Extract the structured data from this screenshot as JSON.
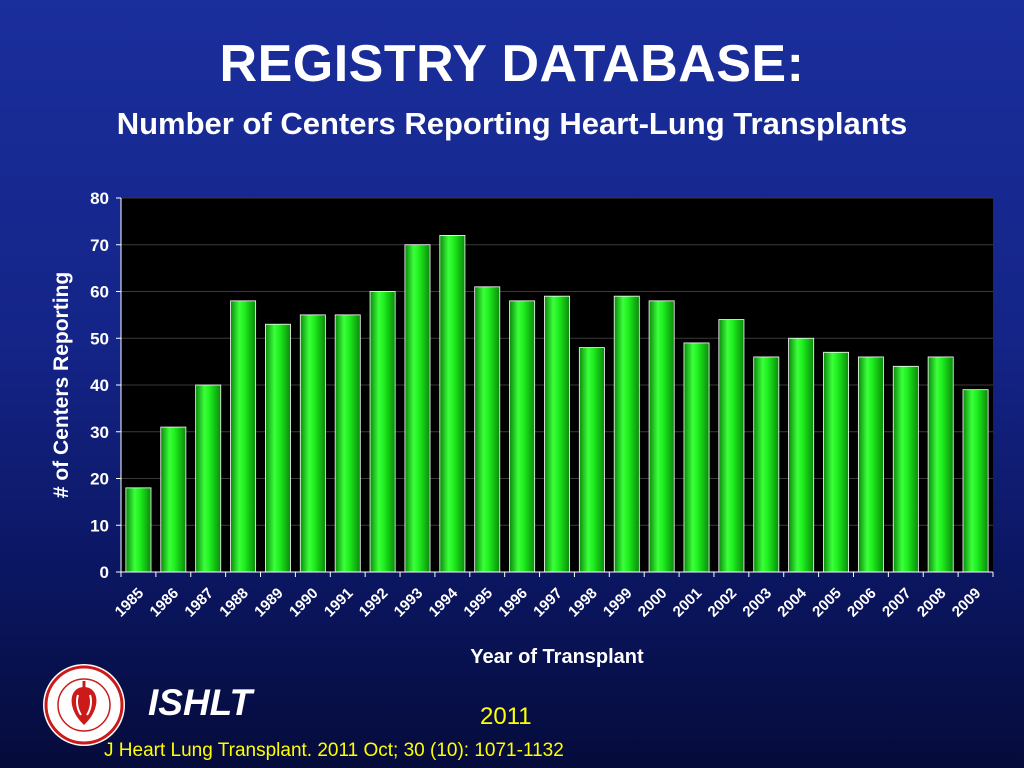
{
  "header": {
    "title": "REGISTRY DATABASE:",
    "subtitle": "Number of Centers Reporting Heart-Lung Transplants"
  },
  "footer": {
    "org_name": "ISHLT",
    "year": "2011",
    "citation": "J Heart Lung Transplant. 2011 Oct; 30 (10): 1071-1132",
    "logo_icon": "ishlt-society-seal-icon"
  },
  "colors": {
    "background": "#142487",
    "plot_background": "#000000",
    "bar_fill": "#19e619",
    "gridline": "#3a3a3a",
    "citation_text": "#ffff00"
  },
  "chart_data": {
    "type": "bar",
    "title": "",
    "xlabel": "Year of Transplant",
    "ylabel": "# of Centers Reporting",
    "ylim": [
      0,
      80
    ],
    "yticks": [
      0,
      10,
      20,
      30,
      40,
      50,
      60,
      70,
      80
    ],
    "grid": true,
    "legend": "none",
    "categories": [
      "1985",
      "1986",
      "1987",
      "1988",
      "1989",
      "1990",
      "1991",
      "1992",
      "1993",
      "1994",
      "1995",
      "1996",
      "1997",
      "1998",
      "1999",
      "2000",
      "2001",
      "2002",
      "2003",
      "2004",
      "2005",
      "2006",
      "2007",
      "2008",
      "2009"
    ],
    "values": [
      18,
      31,
      40,
      58,
      53,
      55,
      55,
      60,
      70,
      72,
      61,
      58,
      59,
      48,
      59,
      58,
      49,
      54,
      46,
      50,
      47,
      46,
      44,
      46,
      39
    ]
  }
}
